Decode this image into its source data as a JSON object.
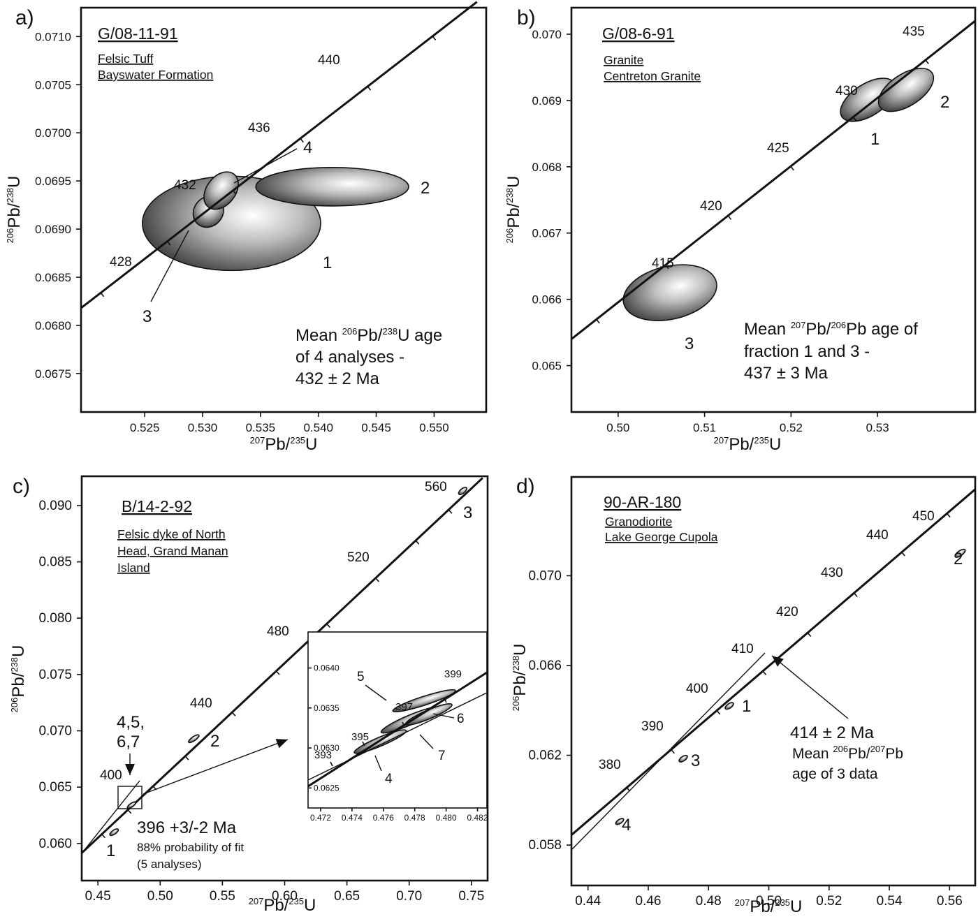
{
  "chart_data": [
    {
      "panel_label": "a)",
      "type": "scatter",
      "title": "G/08-11-91",
      "subtitle_lines": [
        "Felsic Tuff",
        "Bayswater Formation"
      ],
      "xlabel": "207Pb/235U",
      "ylabel": "206Pb/238U",
      "xlim": [
        0.5195,
        0.5545
      ],
      "ylim": [
        0.0671,
        0.0713
      ],
      "x_ticks": [
        "0.525",
        "0.530",
        "0.535",
        "0.540",
        "0.545",
        "0.550"
      ],
      "y_ticks": [
        "0.0675",
        "0.0680",
        "0.0685",
        "0.0690",
        "0.0695",
        "0.0700",
        "0.0705",
        "0.0710"
      ],
      "concordia_age_labels": [
        "428",
        "432",
        "436",
        "440"
      ],
      "ellipses": [
        {
          "label": "1",
          "x": 0.5325,
          "y": 0.06906,
          "rx": 0.0077,
          "ry": 0.00049,
          "angle": 0
        },
        {
          "label": "2",
          "x": 0.5412,
          "y": 0.06944,
          "rx": 0.0066,
          "ry": 0.0002,
          "angle": 0
        },
        {
          "label": "3",
          "x": 0.5305,
          "y": 0.06918,
          "rx": 0.0014,
          "ry": 0.00015,
          "angle": -50
        },
        {
          "label": "4",
          "x": 0.5316,
          "y": 0.0694,
          "rx": 0.0018,
          "ry": 0.00015,
          "angle": -52
        }
      ],
      "annotation": {
        "parts": [
          {
            "t": "Mean ",
            "sup": false
          },
          {
            "t": "206",
            "sup": true
          },
          {
            "t": "Pb/",
            "sup": false
          },
          {
            "t": "238",
            "sup": true
          },
          {
            "t": "U age",
            "sup": false
          }
        ],
        "lines": [
          "of 4 analyses -",
          "432 ± 2 Ma"
        ]
      }
    },
    {
      "panel_label": "b)",
      "type": "scatter",
      "title": "G/08-6-91",
      "subtitle_lines": [
        "Granite",
        "Centreton Granite"
      ],
      "xlabel": "207Pb/235U",
      "ylabel": "206Pb/238U",
      "xlim": [
        0.4946,
        0.5413
      ],
      "ylim": [
        0.0643,
        0.0704
      ],
      "x_ticks": [
        "0.50",
        "0.51",
        "0.52",
        "0.53"
      ],
      "y_ticks": [
        "0.065",
        "0.066",
        "0.067",
        "0.068",
        "0.069",
        "0.070"
      ],
      "concordia_age_labels": [
        "415",
        "420",
        "425",
        "430",
        "435"
      ],
      "ellipses": [
        {
          "label": "1",
          "x": 0.5289,
          "y": 0.06901,
          "rx": 0.0036,
          "ry": 0.00024,
          "angle": -33
        },
        {
          "label": "2",
          "x": 0.5333,
          "y": 0.06916,
          "rx": 0.0036,
          "ry": 0.00024,
          "angle": -33
        },
        {
          "label": "3",
          "x": 0.506,
          "y": 0.0661,
          "rx": 0.0055,
          "ry": 0.0004,
          "angle": -13
        }
      ],
      "annotation": {
        "parts": [
          {
            "t": "Mean ",
            "sup": false
          },
          {
            "t": "207",
            "sup": true
          },
          {
            "t": "Pb/",
            "sup": false
          },
          {
            "t": "206",
            "sup": true
          },
          {
            "t": "Pb age of",
            "sup": false
          }
        ],
        "lines": [
          "fraction 1 and 3 -",
          "437 ± 3 Ma"
        ]
      }
    },
    {
      "panel_label": "c)",
      "type": "scatter",
      "title": "B/14-2-92",
      "subtitle_lines": [
        "Felsic dyke of North",
        "Head, Grand Manan",
        "Island"
      ],
      "xlabel": "207Pb/235U",
      "ylabel": "206Pb/238U",
      "xlim": [
        0.437,
        0.763
      ],
      "ylim": [
        0.0567,
        0.0926
      ],
      "x_ticks": [
        "0.45",
        "0.50",
        "0.55",
        "0.60",
        "0.65",
        "0.70",
        "0.75"
      ],
      "y_ticks": [
        "0.060",
        "0.065",
        "0.070",
        "0.075",
        "0.080",
        "0.085",
        "0.090"
      ],
      "concordia_age_labels": [
        "400",
        "440",
        "480",
        "520",
        "560"
      ],
      "ellipses": [
        {
          "label": "1",
          "x": 0.463,
          "y": 0.061,
          "rx": 0.004,
          "ry": 0.00018,
          "angle": -35
        },
        {
          "label": "2",
          "x": 0.527,
          "y": 0.0693,
          "rx": 0.005,
          "ry": 0.00018,
          "angle": -35
        },
        {
          "label": "3",
          "x": 0.743,
          "y": 0.0913,
          "rx": 0.004,
          "ry": 0.0002,
          "angle": -40
        },
        {
          "label": "4,5,\n6,7",
          "x": 0.477,
          "y": 0.0634,
          "rx": 0.004,
          "ry": 0.00016,
          "angle": -35
        }
      ],
      "main_age_text": "396 +3/-2 Ma",
      "fit_text": "88% probability of fit",
      "analyses_text": "(5 analyses)",
      "inset": {
        "xlim": [
          0.4712,
          0.4826
        ],
        "ylim": [
          0.06225,
          0.06445
        ],
        "x_ticks": [
          "0.472",
          "0.474",
          "0.476",
          "0.478",
          "0.480",
          "0.482"
        ],
        "y_ticks": [
          "0.0625",
          "0.0630",
          "0.0635",
          "0.0640"
        ],
        "concordia_age_labels": [
          "393",
          "395",
          "397",
          "399"
        ],
        "ellipses": [
          {
            "label": "4",
            "x": 0.4758,
            "y": 0.06308,
            "rx": 0.0018,
            "ry": 5.5e-05,
            "angle": -23
          },
          {
            "label": "5",
            "x": 0.4786,
            "y": 0.06359,
            "rx": 0.0021,
            "ry": 5.5e-05,
            "angle": -18
          },
          {
            "label": "6",
            "x": 0.4789,
            "y": 0.06342,
            "rx": 0.0016,
            "ry": 5.5e-05,
            "angle": -23
          },
          {
            "label": "7",
            "x": 0.4777,
            "y": 0.06335,
            "rx": 0.002,
            "ry": 6e-05,
            "angle": -23
          }
        ]
      }
    },
    {
      "panel_label": "d)",
      "type": "scatter",
      "title": "90-AR-180",
      "subtitle_lines": [
        "Granodiorite",
        "Lake George Cupola"
      ],
      "xlabel": "207Pb/235U",
      "ylabel": "206Pb/238U",
      "xlim": [
        0.4345,
        0.5685
      ],
      "ylim": [
        0.0562,
        0.0744
      ],
      "x_ticks": [
        "0.44",
        "0.46",
        "0.48",
        "0.50",
        "0.52",
        "0.54",
        "0.56"
      ],
      "y_ticks": [
        "0.058",
        "0.062",
        "0.066",
        "0.070"
      ],
      "concordia_age_labels": [
        "380",
        "390",
        "400",
        "410",
        "420",
        "430",
        "440",
        "450"
      ],
      "ellipses": [
        {
          "label": "1",
          "x": 0.4869,
          "y": 0.0642,
          "rx": 0.0016,
          "ry": 0.0001,
          "angle": -35
        },
        {
          "label": "2",
          "x": 0.5635,
          "y": 0.071,
          "rx": 0.002,
          "ry": 0.00011,
          "angle": -35
        },
        {
          "label": "3",
          "x": 0.4716,
          "y": 0.06185,
          "rx": 0.0016,
          "ry": 0.0001,
          "angle": -35
        },
        {
          "label": "4",
          "x": 0.4505,
          "y": 0.05905,
          "rx": 0.0015,
          "ry": 9e-05,
          "angle": -33
        }
      ],
      "annotation": {
        "age": "414 ± 2 Ma",
        "parts": [
          {
            "t": "Mean ",
            "sup": false
          },
          {
            "t": "206",
            "sup": true
          },
          {
            "t": "Pb/",
            "sup": false
          },
          {
            "t": "207",
            "sup": true
          },
          {
            "t": "Pb",
            "sup": false
          }
        ],
        "line2": "age of 3 data"
      }
    }
  ]
}
